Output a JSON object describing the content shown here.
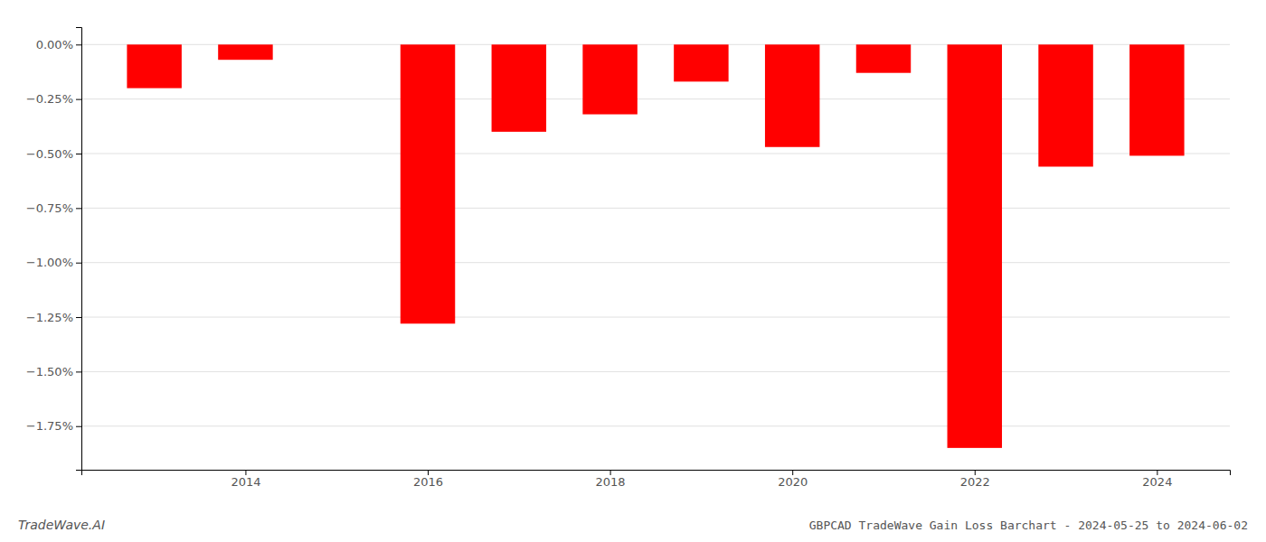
{
  "chart_data": {
    "type": "bar",
    "title": "GBPCAD TradeWave Gain Loss Barchart - 2024-05-25 to 2024-06-02",
    "annotations": [
      "TradeWave.AI"
    ],
    "x": [
      2013,
      2014,
      2015,
      2016,
      2017,
      2018,
      2019,
      2020,
      2021,
      2022,
      2023,
      2024
    ],
    "values": [
      -0.002,
      -0.0007,
      -0.0,
      -0.0128,
      -0.004,
      -0.0032,
      -0.0017,
      -0.0047,
      -0.0013,
      -0.0185,
      -0.0056,
      -0.0051
    ],
    "color": "#ff0000",
    "xlim": [
      2012.2,
      2024.8
    ],
    "xticks": [
      2014,
      2016,
      2018,
      2020,
      2022,
      2024
    ],
    "ylim": [
      -0.0195,
      0.0008
    ],
    "yticks": [
      {
        "value": 0.0,
        "label": "0.00%"
      },
      {
        "value": -0.0025,
        "label": "−0.25%"
      },
      {
        "value": -0.005,
        "label": "−0.50%"
      },
      {
        "value": -0.0075,
        "label": "−0.75%"
      },
      {
        "value": -0.01,
        "label": "−1.00%"
      },
      {
        "value": -0.0125,
        "label": "−1.25%"
      },
      {
        "value": -0.015,
        "label": "−1.50%"
      },
      {
        "value": -0.0175,
        "label": "−1.75%"
      }
    ],
    "grid": true
  }
}
